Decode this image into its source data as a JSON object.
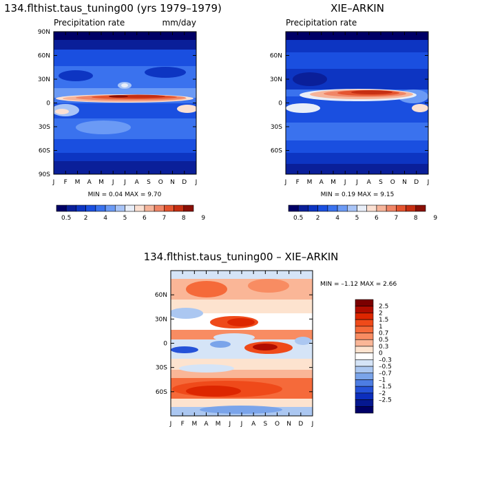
{
  "panel_model": {
    "header": "134.flthist.taus_tuning00 (yrs 1979–1979)",
    "subtitle": "Precipitation rate",
    "units": "mm/day",
    "minmax": "MIN =   0.04 MAX =     9.70"
  },
  "panel_obs": {
    "header": "XIE–ARKIN",
    "subtitle": "Precipitation rate",
    "minmax": "MIN =   0.19 MAX =     9.15"
  },
  "panel_diff": {
    "header": "134.flthist.taus_tuning00 – XIE–ARKIN",
    "minmax": "MIN =  –1.12 MAX =    2.66"
  },
  "chart_data": [
    {
      "type": "heatmap",
      "title": "134.flthist.taus_tuning00 (yrs 1979–1979)",
      "subtitle": "Precipitation rate",
      "units": "mm/day",
      "x_ticks": [
        "J",
        "F",
        "M",
        "A",
        "M",
        "J",
        "J",
        "A",
        "S",
        "O",
        "N",
        "D",
        "J"
      ],
      "y_ticks": [
        "90N",
        "60N",
        "30N",
        "0",
        "30S",
        "60S",
        "90S"
      ],
      "min": 0.04,
      "max": 9.7,
      "colorbar_labels": [
        "0.5",
        "2",
        "4",
        "5",
        "6",
        "7",
        "8",
        "9"
      ]
    },
    {
      "type": "heatmap",
      "title": "XIE–ARKIN",
      "subtitle": "Precipitation rate",
      "x_ticks": [
        "J",
        "F",
        "M",
        "A",
        "M",
        "J",
        "J",
        "A",
        "S",
        "O",
        "N",
        "D",
        "J"
      ],
      "y_ticks": [
        "60N",
        "30N",
        "0",
        "30S",
        "60S"
      ],
      "min": 0.19,
      "max": 9.15,
      "colorbar_labels": [
        "0.5",
        "2",
        "4",
        "5",
        "6",
        "7",
        "8",
        "9"
      ]
    },
    {
      "type": "heatmap",
      "title": "134.flthist.taus_tuning00 – XIE–ARKIN",
      "x_ticks": [
        "J",
        "F",
        "M",
        "A",
        "M",
        "J",
        "J",
        "A",
        "S",
        "O",
        "N",
        "D",
        "J"
      ],
      "y_ticks": [
        "60N",
        "30N",
        "0",
        "30S",
        "60S"
      ],
      "min": -1.12,
      "max": 2.66,
      "colorbar_labels": [
        "2.5",
        "2",
        "1.5",
        "1",
        "0.7",
        "0.5",
        "0.3",
        "0",
        "–0.3",
        "–0.5",
        "–0.7",
        "–1",
        "–1.5",
        "–2",
        "–2.5"
      ]
    }
  ],
  "colors": {
    "precip_scale": [
      "#000066",
      "#0a1f99",
      "#0d35c2",
      "#1a4fe0",
      "#3a72ee",
      "#6b9af5",
      "#a8c4f7",
      "#e8eef8",
      "#fbe0d2",
      "#f6b49a",
      "#f08566",
      "#e4542f",
      "#c62e12",
      "#8a0f05"
    ],
    "diff_scale": [
      "#7b0000",
      "#b00d00",
      "#dd2600",
      "#ef4a1a",
      "#f56a3a",
      "#f88c62",
      "#fab697",
      "#fde3cf",
      "#ffffff",
      "#d5e4f7",
      "#abc7f1",
      "#7aa4ea",
      "#4d7de3",
      "#2552d8",
      "#0c2ebd",
      "#051890",
      "#000066"
    ]
  }
}
